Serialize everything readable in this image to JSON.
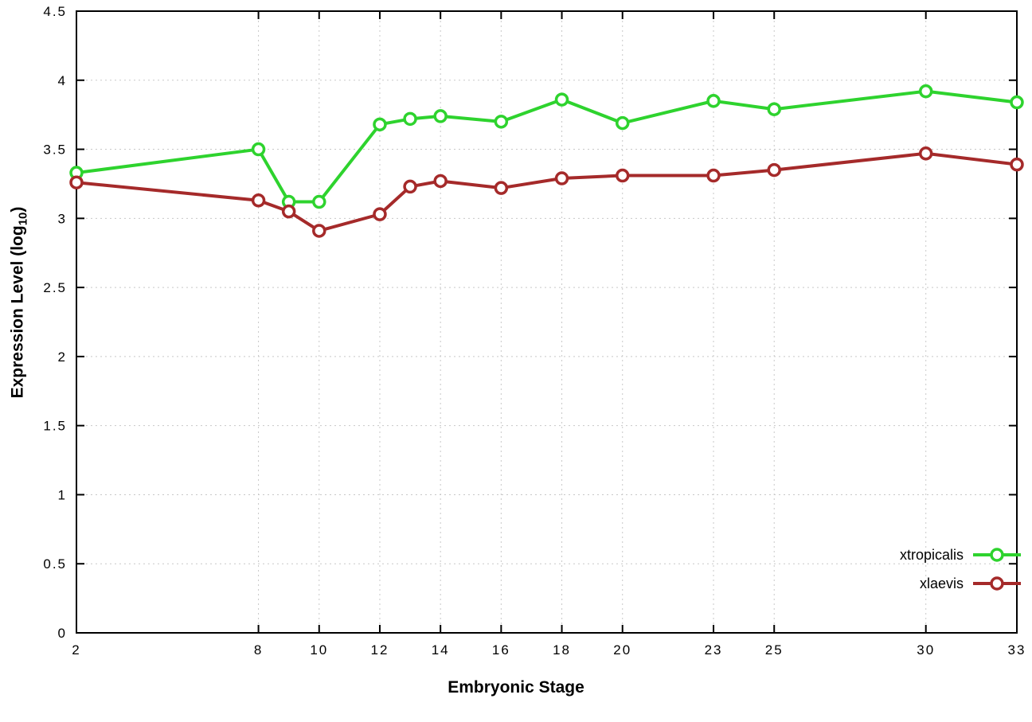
{
  "chart_data": {
    "type": "line",
    "title": "",
    "xlabel": "Embryonic Stage",
    "ylabel_prefix": "Expression Level (log",
    "ylabel_sub": "10",
    "ylabel_suffix": ")",
    "xlim": [
      2,
      33
    ],
    "ylim": [
      0,
      4.5
    ],
    "xticks": [
      2,
      8,
      10,
      12,
      14,
      16,
      18,
      20,
      23,
      25,
      30,
      33
    ],
    "yticks": [
      0,
      0.5,
      1,
      1.5,
      2,
      2.5,
      3,
      3.5,
      4,
      4.5
    ],
    "grid": true,
    "legend_position": "bottom-right",
    "x": [
      2,
      8,
      9,
      10,
      12,
      13,
      14,
      16,
      18,
      20,
      23,
      25,
      30,
      33
    ],
    "series": [
      {
        "name": "xtropicalis",
        "color": "#2ed32e",
        "values": [
          3.33,
          3.5,
          3.12,
          3.12,
          3.68,
          3.72,
          3.74,
          3.7,
          3.86,
          3.69,
          3.85,
          3.79,
          3.92,
          3.84
        ]
      },
      {
        "name": "xlaevis",
        "color": "#a52a2a",
        "values": [
          3.26,
          3.13,
          3.05,
          2.91,
          3.03,
          3.23,
          3.27,
          3.22,
          3.29,
          3.31,
          3.31,
          3.35,
          3.47,
          3.39
        ]
      }
    ]
  }
}
